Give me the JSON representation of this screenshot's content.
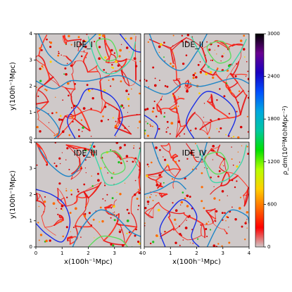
{
  "chart_data": {
    "type": "heatmap",
    "panels": [
      {
        "label": "IDE_I"
      },
      {
        "label": "IDE_II"
      },
      {
        "label": "IDE_III"
      },
      {
        "label": "IDE_IV"
      }
    ],
    "xlabel": "x(100h⁻¹Mpc)",
    "ylabel": "y(100h⁻¹Mpc)",
    "xlim": [
      0,
      4
    ],
    "ylim": [
      0,
      4
    ],
    "x_ticks": [
      "0",
      "1",
      "2",
      "3",
      "4"
    ],
    "y_ticks": [
      "0",
      "1",
      "2",
      "3",
      "4"
    ],
    "colorbar": {
      "label": "ρ_dm(10¹⁰M⊙hMpc⁻²)",
      "range": [
        0,
        3000
      ],
      "ticks": [
        0,
        600,
        1200,
        1800,
        2400,
        3000
      ],
      "tick_labels": [
        "0",
        "600",
        "1200",
        "1800",
        "2400",
        "3000"
      ],
      "colormap": [
        "#cfc9c9",
        "#ff0000",
        "#ff6a00",
        "#ffd000",
        "#b6ff00",
        "#00e000",
        "#00c8a0",
        "#00a8e0",
        "#0050ff",
        "#1a00c0",
        "#6a0090",
        "#000000"
      ]
    },
    "contours": {
      "levels": [
        "#1a2ee6",
        "#1f86c7",
        "#3fd6a8",
        "#5fdc5f"
      ]
    },
    "density_field": "gray background with red/orange filamentary cosmic web"
  }
}
